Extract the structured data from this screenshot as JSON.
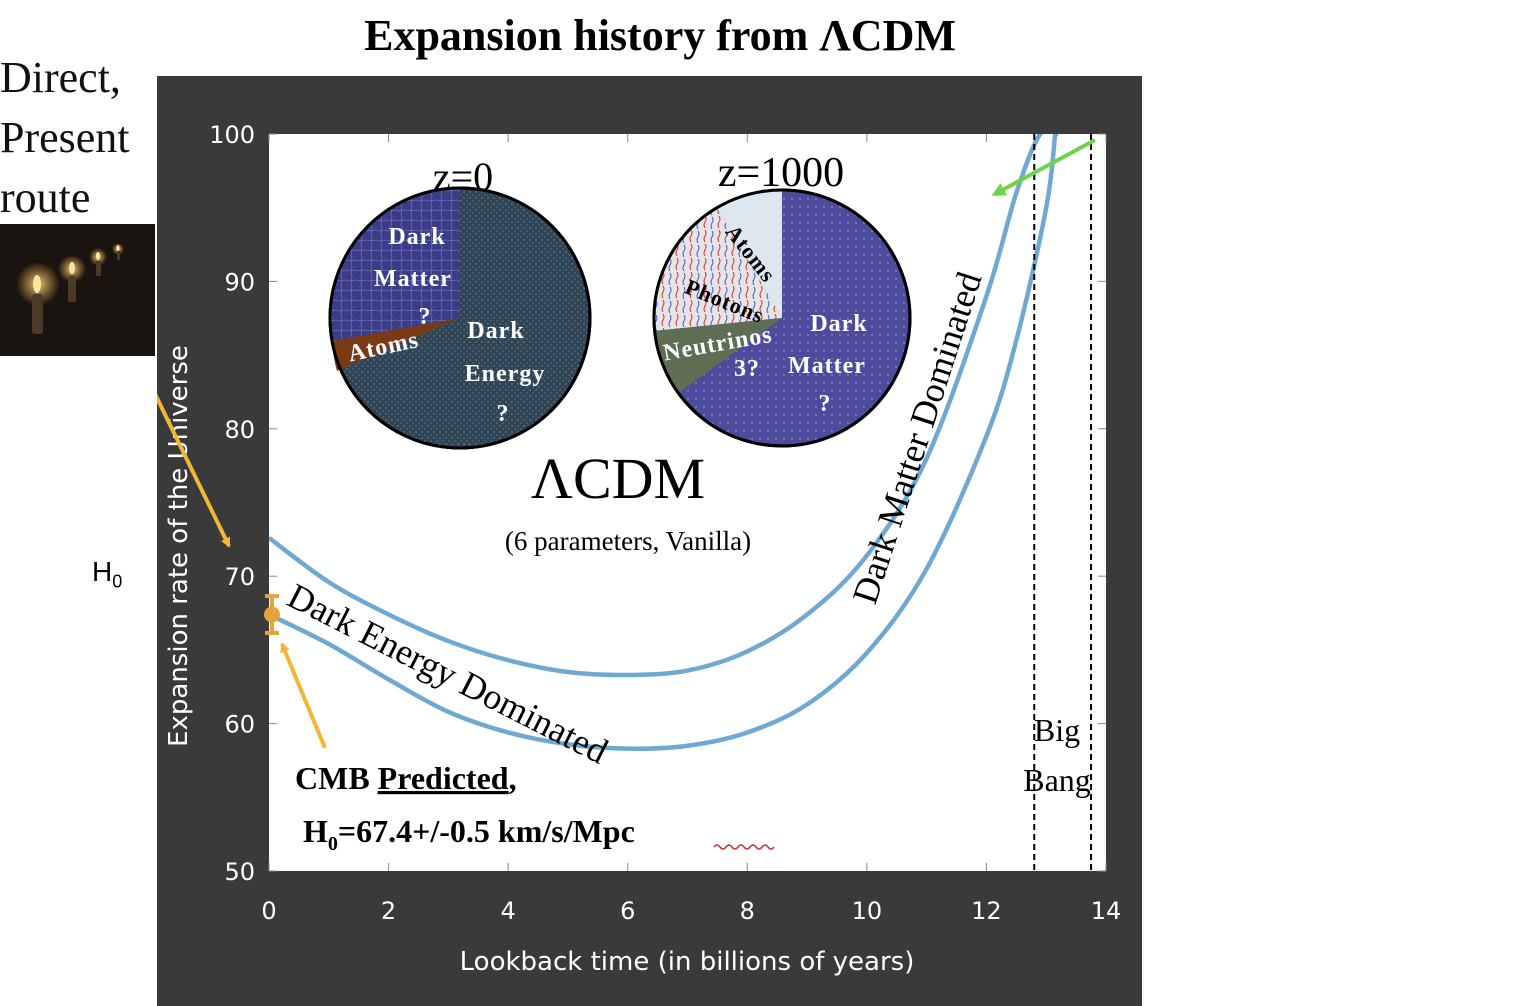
{
  "title": "Expansion history from ΛCDM",
  "side_label": [
    "Direct,",
    "Present",
    "route"
  ],
  "h0_label": {
    "main": "H",
    "sub": "0"
  },
  "chart_data": {
    "type": "line",
    "xlabel": "Lookback time (in billions of years)",
    "ylabel": "Expansion rate of the Universe",
    "xlim": [
      0,
      14
    ],
    "ylim": [
      50,
      100
    ],
    "xticks": [
      0,
      2,
      4,
      6,
      8,
      10,
      12,
      14
    ],
    "yticks": [
      50,
      60,
      70,
      80,
      90,
      100
    ],
    "grid": false,
    "series": [
      {
        "x": [
          0,
          1,
          2,
          3,
          4,
          5,
          6,
          7,
          8,
          9,
          10,
          11,
          12,
          12.5,
          12.9,
          13.2
        ],
        "y": [
          72.6,
          69.6,
          67.4,
          65.6,
          64.3,
          63.5,
          63.3,
          63.6,
          64.9,
          67.4,
          71.4,
          78.0,
          89.0,
          96.0,
          100.0,
          100.0
        ],
        "color": "#6fa8d2"
      },
      {
        "x": [
          0,
          1,
          2,
          3,
          4,
          5,
          6,
          7,
          8,
          9,
          10,
          11,
          12,
          12.5,
          13.0,
          13.15
        ],
        "y": [
          67.4,
          65.4,
          63.0,
          60.8,
          59.4,
          58.6,
          58.3,
          58.5,
          59.4,
          61.3,
          64.8,
          70.5,
          79.5,
          86.0,
          95.0,
          100.0
        ],
        "color": "#6fa8d2"
      }
    ],
    "vlines": [
      12.8,
      13.75
    ],
    "h0_point": {
      "x": 0.05,
      "y": 67.4,
      "err": 0.5,
      "color": "#e9a23b"
    },
    "annotations": {
      "lcdm": "ΛCDM",
      "lcdm_sub": "(6 parameters, Vanilla)",
      "de_dominated": "Dark Energy Dominated",
      "dm_dominated": "Dark Matter Dominated",
      "big_bang_1": "Big",
      "big_bang_2": "Bang",
      "cmb_line1_a": "CMB ",
      "cmb_line1_b": "Predicted",
      "cmb_line1_c": ",",
      "cmb_line2_a": "H",
      "cmb_line2_sub": "0",
      "cmb_line2_b": "=67.4+/-0.5 km/s/Mpc"
    },
    "pies": [
      {
        "label": "z=0",
        "words": [
          "Dark",
          "Matter",
          "?",
          "Atoms",
          "Dark",
          "Energy",
          "?"
        ]
      },
      {
        "label": "z=1000",
        "words": [
          "Atoms",
          "Photons",
          "Neutrinos",
          "3?",
          "Dark",
          "Matter",
          "?"
        ]
      }
    ]
  }
}
